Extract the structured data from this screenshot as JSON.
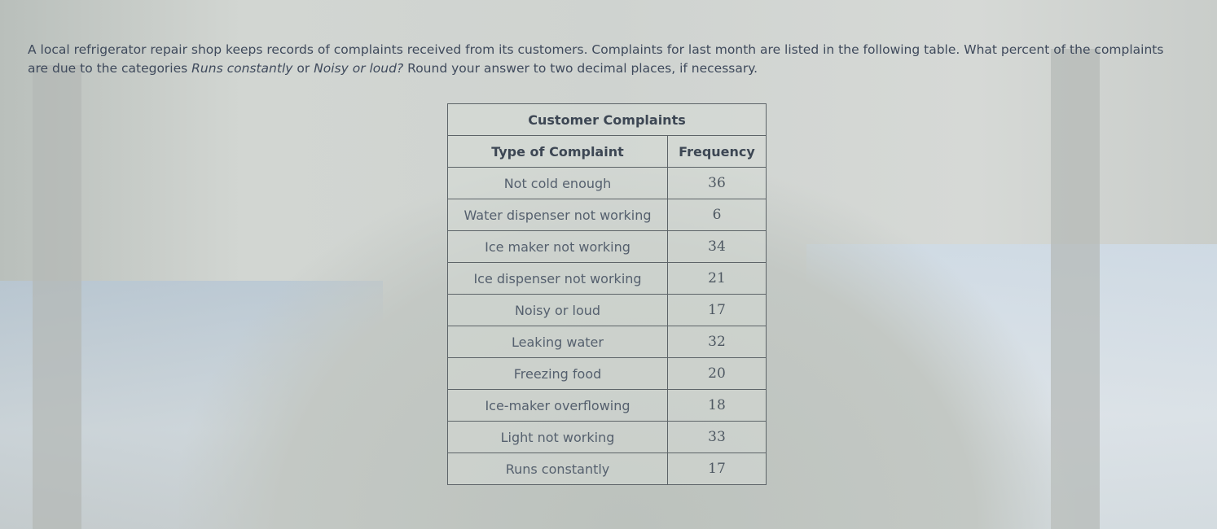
{
  "question": {
    "part1": "A local refrigerator repair shop keeps records of complaints received from its customers. Complaints for last month are listed in the following table. What percent of the complaints are due to the categories ",
    "italic1": "Runs constantly",
    "part2": " or ",
    "italic2": "Noisy or loud?",
    "part3": " Round your answer to two decimal places, if necessary."
  },
  "table": {
    "title": "Customer Complaints",
    "headers": [
      "Type of Complaint",
      "Frequency"
    ],
    "rows": [
      {
        "type": "Not cold enough",
        "frequency": "36"
      },
      {
        "type": "Water dispenser not working",
        "frequency": "6"
      },
      {
        "type": "Ice maker not working",
        "frequency": "34"
      },
      {
        "type": "Ice dispenser not working",
        "frequency": "21"
      },
      {
        "type": "Noisy or loud",
        "frequency": "17"
      },
      {
        "type": "Leaking water",
        "frequency": "32"
      },
      {
        "type": "Freezing food",
        "frequency": "20"
      },
      {
        "type": "Ice-maker overflowing",
        "frequency": "18"
      },
      {
        "type": "Light not working",
        "frequency": "33"
      },
      {
        "type": "Runs constantly",
        "frequency": "17"
      }
    ]
  }
}
